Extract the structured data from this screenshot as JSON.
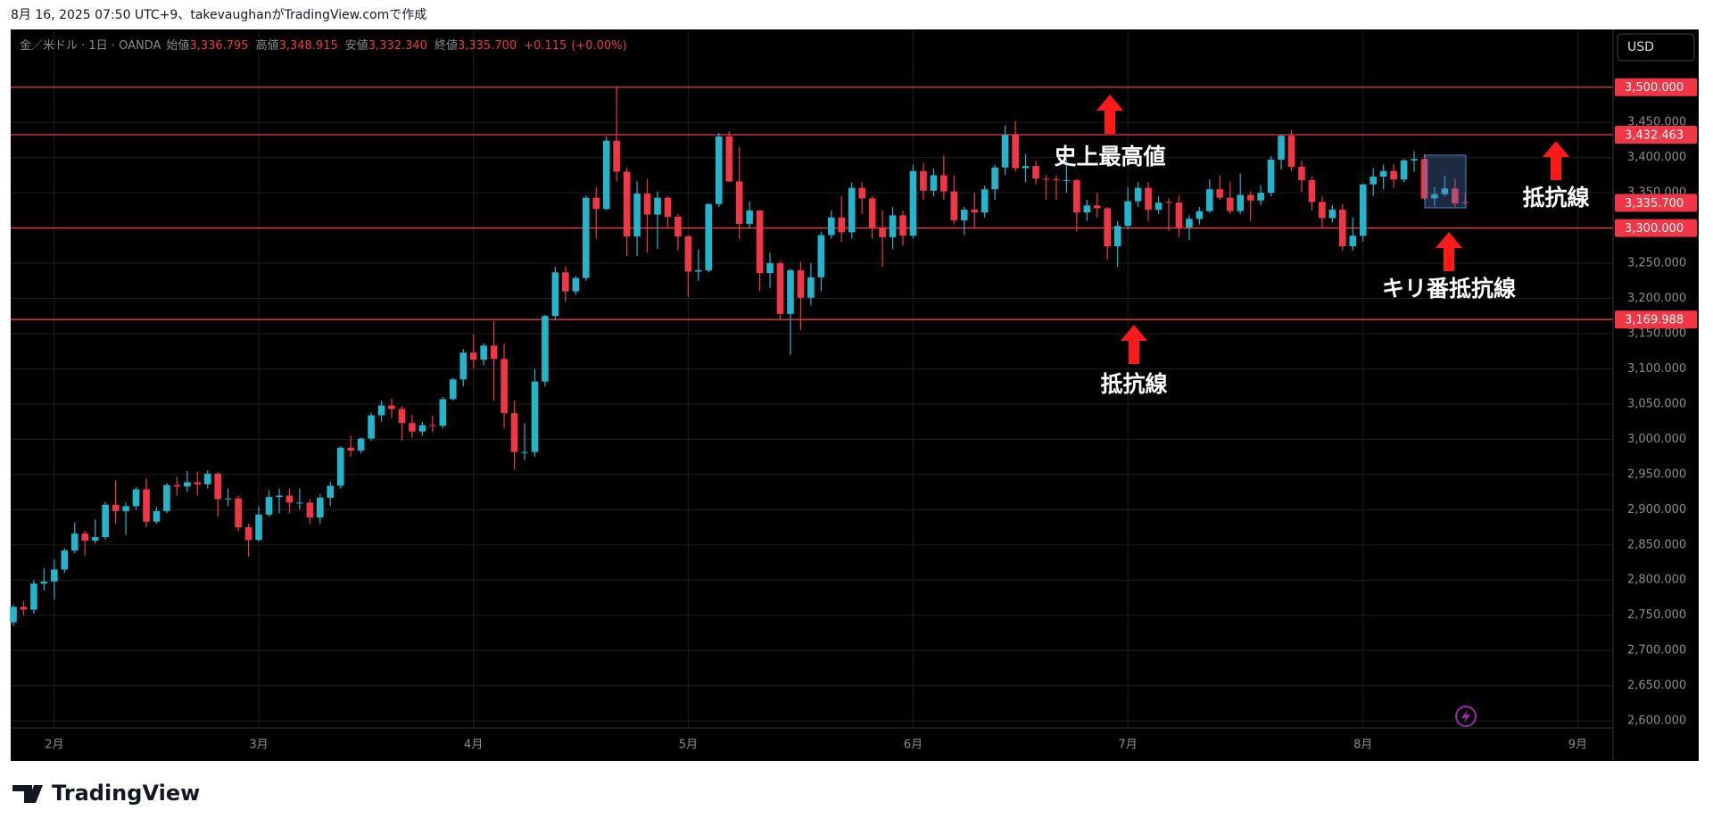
{
  "header": {
    "caption": "8月 16, 2025 07:50 UTC+9、takevaughanがTradingView.comで作成"
  },
  "footer": {
    "logo_text": "TradingView"
  },
  "chart_data": {
    "type": "candlestick",
    "symbol": "金／米ドル · 1日 · OANDA",
    "currency": "USD",
    "ohlc_legend": {
      "labels": [
        "始値",
        "高値",
        "安値",
        "終値"
      ],
      "values": [
        3336.795,
        3348.915,
        3332.34,
        3335.7
      ],
      "value_labels": [
        "3,336.795",
        "3,348.915",
        "3,332.340",
        "3,335.700"
      ]
    },
    "change": {
      "values": [
        0.115,
        0
      ],
      "value_labels": [
        "+0.115",
        "(+0.00%)"
      ]
    },
    "up_color": "#22b5cc",
    "down_color": "#f23645",
    "categories": [
      null,
      null,
      null,
      null,
      "2月",
      null,
      null,
      null,
      null,
      null,
      null,
      null,
      null,
      null,
      null,
      null,
      null,
      null,
      null,
      null,
      null,
      null,
      null,
      null,
      "3月",
      null,
      null,
      null,
      null,
      null,
      null,
      null,
      null,
      null,
      null,
      null,
      null,
      null,
      null,
      null,
      null,
      null,
      null,
      null,
      null,
      "4月",
      null,
      null,
      null,
      null,
      null,
      null,
      null,
      null,
      null,
      null,
      null,
      null,
      null,
      null,
      null,
      null,
      null,
      null,
      null,
      null,
      "5月",
      null,
      null,
      null,
      null,
      null,
      null,
      null,
      null,
      null,
      null,
      null,
      null,
      null,
      null,
      null,
      null,
      null,
      null,
      null,
      null,
      null,
      "6月",
      null,
      null,
      null,
      null,
      null,
      null,
      null,
      null,
      null,
      null,
      null,
      null,
      null,
      null,
      null,
      null,
      null,
      null,
      null,
      null,
      "7月",
      null,
      null,
      null,
      null,
      null,
      null,
      null,
      null,
      null,
      null,
      null,
      null,
      null,
      null,
      null,
      null,
      null,
      null,
      null,
      null,
      null,
      null,
      "8月",
      null,
      null,
      null,
      null,
      null,
      null,
      null,
      null,
      null,
      null,
      null,
      null,
      null,
      null,
      null,
      null,
      null,
      null,
      null,
      null,
      "9月"
    ],
    "open": [
      2740,
      2762,
      2758,
      2795,
      2798,
      2815,
      2842,
      2866,
      2856,
      2861,
      2907,
      2898,
      2905,
      2929,
      2883,
      2898,
      2935,
      2933,
      2939,
      2936,
      2951,
      2915,
      2916,
      2875,
      2857,
      2893,
      2918,
      2920,
      2910,
      2910,
      2889,
      2917,
      2934,
      2988,
      2984,
      3001,
      3034,
      3048,
      3043,
      3023,
      3011,
      3020,
      3019,
      3057,
      3085,
      3123,
      3113,
      3133,
      3114,
      3037,
      2982,
      2982,
      3082,
      3175,
      3237,
      3210,
      3229,
      3343,
      3327,
      3424,
      3380,
      3288,
      3349,
      3319,
      3343,
      3316,
      3288,
      3238,
      3240,
      3334,
      3430,
      3366,
      3306,
      3325,
      3236,
      3250,
      3178,
      3240,
      3201,
      3230,
      3290,
      3315,
      3294,
      3357,
      3342,
      3300,
      3287,
      3318,
      3289,
      3381,
      3353,
      3375,
      3352,
      3311,
      3326,
      3322,
      3355,
      3386,
      3432,
      3385,
      3388,
      3370,
      3369,
      3368,
      3368,
      3322,
      3332,
      3328,
      3274,
      3303,
      3338,
      3357,
      3326,
      3337,
      3336,
      3301,
      3313,
      3324,
      3355,
      3343,
      3324,
      3347,
      3339,
      3350,
      3397,
      3431,
      3387,
      3368,
      3337,
      3314,
      3326,
      3274,
      3289,
      3362,
      3373,
      3381,
      3369,
      3396,
      3398,
      3342,
      3348,
      3356,
      3336.795,
      null,
      null,
      null,
      null,
      null,
      null,
      null,
      null,
      null,
      null,
      null
    ],
    "high": [
      2765,
      2770,
      2800,
      2817,
      2830,
      2845,
      2882,
      2870,
      2886,
      2911,
      2942,
      2910,
      2932,
      2944,
      2904,
      2938,
      2947,
      2955,
      2954,
      2956,
      2953,
      2930,
      2920,
      2880,
      2905,
      2928,
      2930,
      2930,
      2930,
      2915,
      2922,
      2940,
      2990,
      3005,
      3002,
      3038,
      3055,
      3058,
      3047,
      3035,
      3025,
      3033,
      3060,
      3087,
      3128,
      3149,
      3136,
      3168,
      3136,
      3055,
      3023,
      3100,
      3177,
      3245,
      3245,
      3232,
      3346,
      3358,
      3430,
      3500,
      3386,
      3367,
      3370,
      3352,
      3345,
      3320,
      3290,
      3270,
      3335,
      3435,
      3437,
      3415,
      3338,
      3325,
      3265,
      3253,
      3242,
      3252,
      3250,
      3295,
      3325,
      3345,
      3365,
      3365,
      3345,
      3325,
      3330,
      3325,
      3390,
      3392,
      3385,
      3403,
      3375,
      3330,
      3350,
      3360,
      3390,
      3446,
      3452,
      3405,
      3395,
      3375,
      3375,
      3398,
      3370,
      3340,
      3350,
      3330,
      3310,
      3358,
      3365,
      3365,
      3345,
      3342,
      3346,
      3318,
      3330,
      3369,
      3375,
      3366,
      3377,
      3352,
      3361,
      3402,
      3433,
      3439,
      3396,
      3373,
      3345,
      3333,
      3334,
      3315,
      3363,
      3385,
      3390,
      3391,
      3398,
      3409,
      3405,
      3358,
      3374,
      3370,
      3348.915,
      null,
      null,
      null,
      null,
      null,
      null,
      null,
      null,
      null,
      null,
      null
    ],
    "low": [
      2735,
      2750,
      2752,
      2785,
      2772,
      2810,
      2838,
      2835,
      2852,
      2858,
      2880,
      2864,
      2900,
      2875,
      2880,
      2895,
      2920,
      2925,
      2920,
      2930,
      2890,
      2905,
      2870,
      2833,
      2855,
      2890,
      2895,
      2895,
      2900,
      2880,
      2880,
      2905,
      2930,
      2975,
      2980,
      2998,
      3025,
      3030,
      2998,
      3002,
      3005,
      3010,
      3015,
      3055,
      3075,
      3100,
      3105,
      3055,
      3015,
      2957,
      2970,
      2975,
      3075,
      3170,
      3195,
      3205,
      3225,
      3285,
      3325,
      3366,
      3260,
      3260,
      3265,
      3270,
      3300,
      3268,
      3202,
      3225,
      3237,
      3330,
      3365,
      3285,
      3300,
      3210,
      3215,
      3170,
      3120,
      3155,
      3190,
      3210,
      3285,
      3280,
      3285,
      3320,
      3285,
      3245,
      3270,
      3275,
      3285,
      3340,
      3345,
      3340,
      3305,
      3290,
      3300,
      3315,
      3340,
      3375,
      3380,
      3365,
      3362,
      3340,
      3340,
      3350,
      3295,
      3310,
      3315,
      3255,
      3245,
      3298,
      3330,
      3310,
      3320,
      3296,
      3287,
      3283,
      3305,
      3322,
      3340,
      3320,
      3320,
      3310,
      3332,
      3345,
      3383,
      3381,
      3351,
      3325,
      3301,
      3308,
      3268,
      3268,
      3281,
      3345,
      3355,
      3357,
      3365,
      3380,
      3340,
      3331,
      3345,
      3330,
      3332.34,
      null,
      null,
      null,
      null,
      null,
      null,
      null,
      null,
      null,
      null,
      null
    ],
    "close": [
      2762,
      2758,
      2795,
      2798,
      2815,
      2842,
      2866,
      2856,
      2861,
      2907,
      2898,
      2905,
      2929,
      2883,
      2898,
      2935,
      2933,
      2939,
      2936,
      2951,
      2915,
      2916,
      2875,
      2857,
      2893,
      2918,
      2920,
      2910,
      2910,
      2889,
      2917,
      2934,
      2988,
      2984,
      3001,
      3034,
      3048,
      3043,
      3023,
      3011,
      3020,
      3019,
      3057,
      3085,
      3123,
      3113,
      3133,
      3114,
      3037,
      2982,
      2982,
      3082,
      3175,
      3237,
      3210,
      3229,
      3343,
      3327,
      3424,
      3380,
      3288,
      3349,
      3319,
      3343,
      3316,
      3288,
      3238,
      3240,
      3334,
      3430,
      3366,
      3306,
      3325,
      3236,
      3250,
      3178,
      3240,
      3201,
      3230,
      3290,
      3315,
      3294,
      3357,
      3342,
      3300,
      3287,
      3318,
      3289,
      3381,
      3353,
      3375,
      3352,
      3311,
      3326,
      3322,
      3355,
      3386,
      3432,
      3385,
      3388,
      3370,
      3369,
      3368,
      3368,
      3322,
      3332,
      3328,
      3274,
      3303,
      3338,
      3357,
      3326,
      3336,
      3336,
      3301,
      3313,
      3324,
      3355,
      3343,
      3324,
      3347,
      3339,
      3350,
      3397,
      3431,
      3387,
      3368,
      3337,
      3314,
      3326,
      3274,
      3289,
      3362,
      3373,
      3381,
      3369,
      3396,
      3398,
      3342,
      3348,
      3356,
      3335,
      3335.7,
      null,
      null,
      null,
      null,
      null,
      null,
      null,
      null,
      null,
      null,
      null
    ],
    "ylim": [
      2590,
      3582
    ],
    "yticks": [
      {
        "value": 2600,
        "label": "2,600.000"
      },
      {
        "value": 2650,
        "label": "2,650.000"
      },
      {
        "value": 2700,
        "label": "2,700.000"
      },
      {
        "value": 2750,
        "label": "2,750.000"
      },
      {
        "value": 2800,
        "label": "2,800.000"
      },
      {
        "value": 2850,
        "label": "2,850.000"
      },
      {
        "value": 2900,
        "label": "2,900.000"
      },
      {
        "value": 2950,
        "label": "2,950.000"
      },
      {
        "value": 3000,
        "label": "3,000.000"
      },
      {
        "value": 3050,
        "label": "3,050.000"
      },
      {
        "value": 3100,
        "label": "3,100.000"
      },
      {
        "value": 3150,
        "label": "3,150.000"
      },
      {
        "value": 3200,
        "label": "3,200.000"
      },
      {
        "value": 3250,
        "label": "3,250.000"
      },
      {
        "value": 3300,
        "label": "3,300.000"
      },
      {
        "value": 3350,
        "label": "3,350.000"
      },
      {
        "value": 3400,
        "label": "3,400.000"
      },
      {
        "value": 3450,
        "label": "3,450.000"
      }
    ],
    "grid": true,
    "hlines": {
      "color": "#f23645",
      "values": [
        3500,
        3432.463,
        3300,
        3169.988
      ],
      "value_labels": [
        "3,500.000",
        "3,432.463",
        "3,300.000",
        "3,169.988"
      ]
    },
    "last_price": {
      "value": 3335.7,
      "label": "3,335.700"
    },
    "annotations": [
      "史上最高値",
      "抵抗線",
      "キリ番抵抗線",
      "抵抗線"
    ]
  }
}
